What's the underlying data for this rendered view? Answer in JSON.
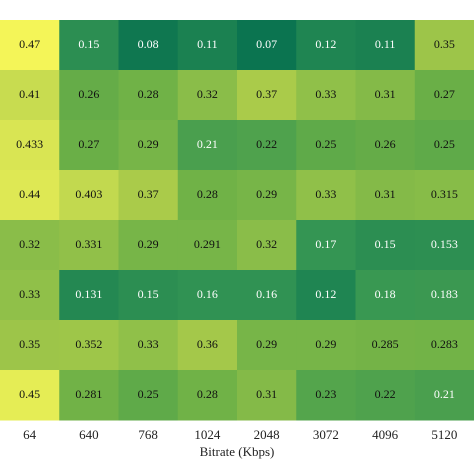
{
  "chart_data": {
    "type": "heatmap",
    "x_label": "Bitrate (Kbps)",
    "categories": [
      "64",
      "640",
      "768",
      "1024",
      "2048",
      "3072",
      "4096",
      "5120"
    ],
    "values": [
      [
        0.47,
        0.15,
        0.08,
        0.11,
        0.07,
        0.12,
        0.11,
        0.35
      ],
      [
        0.41,
        0.26,
        0.28,
        0.32,
        0.37,
        0.33,
        0.31,
        0.27
      ],
      [
        0.433,
        0.27,
        0.29,
        0.21,
        0.22,
        0.25,
        0.26,
        0.25
      ],
      [
        0.44,
        0.403,
        0.37,
        0.28,
        0.29,
        0.33,
        0.31,
        0.315
      ],
      [
        0.32,
        0.331,
        0.29,
        0.291,
        0.32,
        0.17,
        0.15,
        0.153
      ],
      [
        0.33,
        0.131,
        0.15,
        0.16,
        0.16,
        0.12,
        0.18,
        0.183
      ],
      [
        0.35,
        0.352,
        0.33,
        0.36,
        0.29,
        0.29,
        0.285,
        0.283
      ],
      [
        0.45,
        0.281,
        0.25,
        0.28,
        0.31,
        0.23,
        0.22,
        0.21
      ]
    ],
    "clim": [
      0.07,
      0.47
    ],
    "colors": [
      "#0b7450",
      "#349553",
      "#6aaf47",
      "#aacb4a",
      "#f4f558"
    ]
  }
}
